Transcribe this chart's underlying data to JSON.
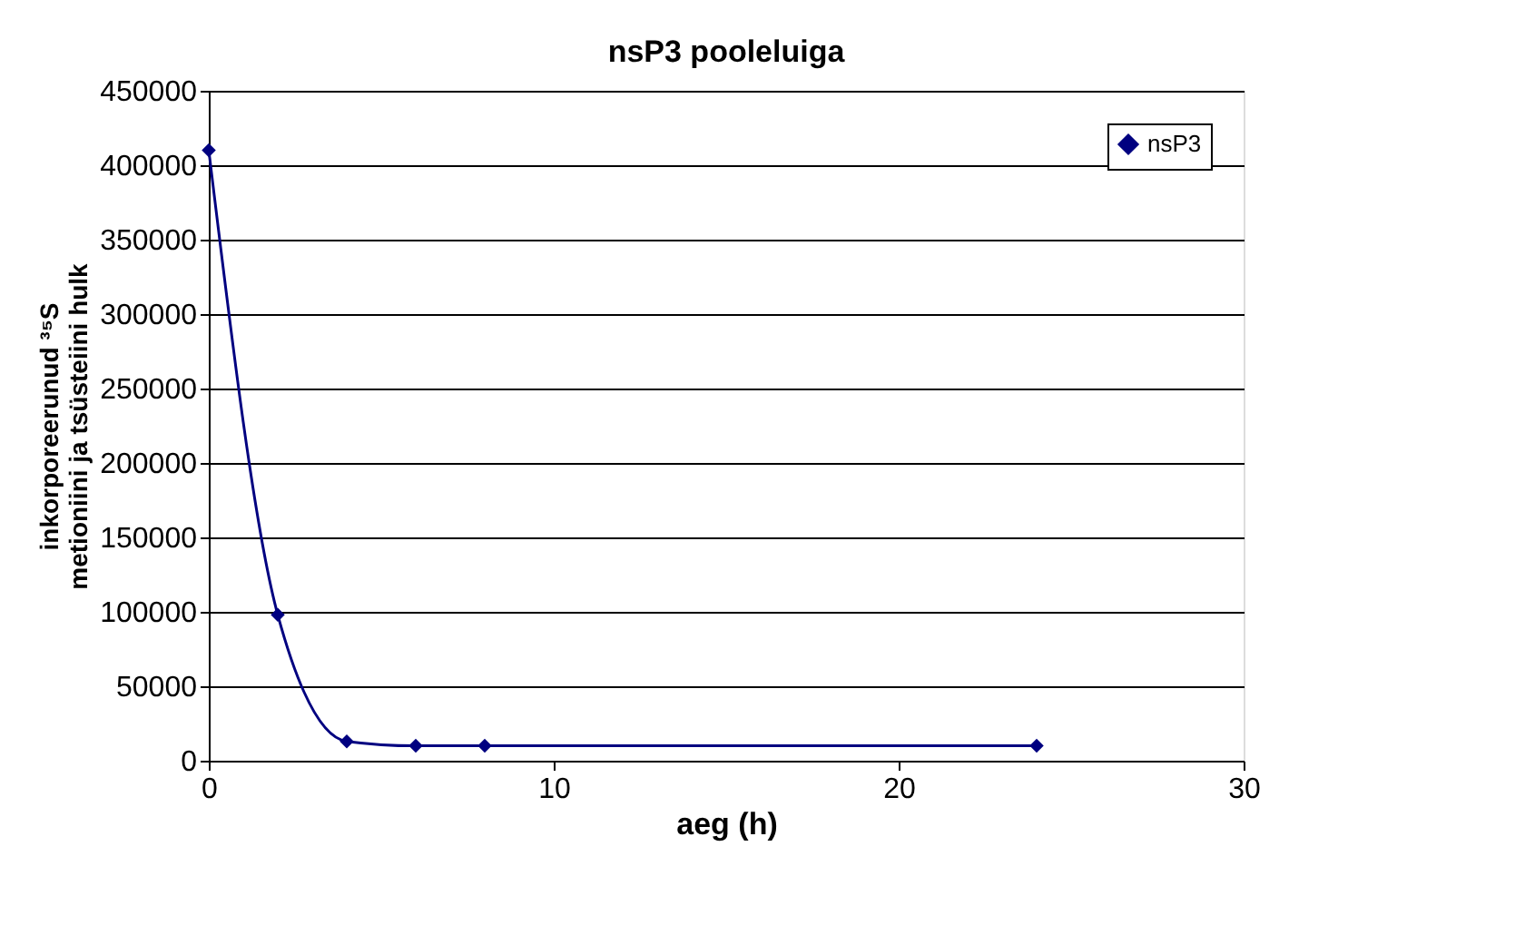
{
  "chart_data": {
    "type": "line",
    "title": "nsP3 pooleluiga",
    "xlabel": "aeg (h)",
    "ylabel": "inkorporeerunud ³⁵S\nmetioniini ja tsüsteiini hulk",
    "x": [
      0,
      2,
      4,
      6,
      8,
      24
    ],
    "series": [
      {
        "name": "nsP3",
        "color": "#000080",
        "values": [
          410000,
          98000,
          13000,
          10000,
          10000,
          10000
        ]
      }
    ],
    "xlim": [
      0,
      30
    ],
    "xticks": [
      0,
      10,
      20,
      30
    ],
    "ylim": [
      0,
      450000
    ],
    "yticks": [
      0,
      50000,
      100000,
      150000,
      200000,
      250000,
      300000,
      350000,
      400000,
      450000
    ],
    "grid": "y",
    "legend": "top right",
    "marker": "diamond",
    "line_style": "solid"
  }
}
